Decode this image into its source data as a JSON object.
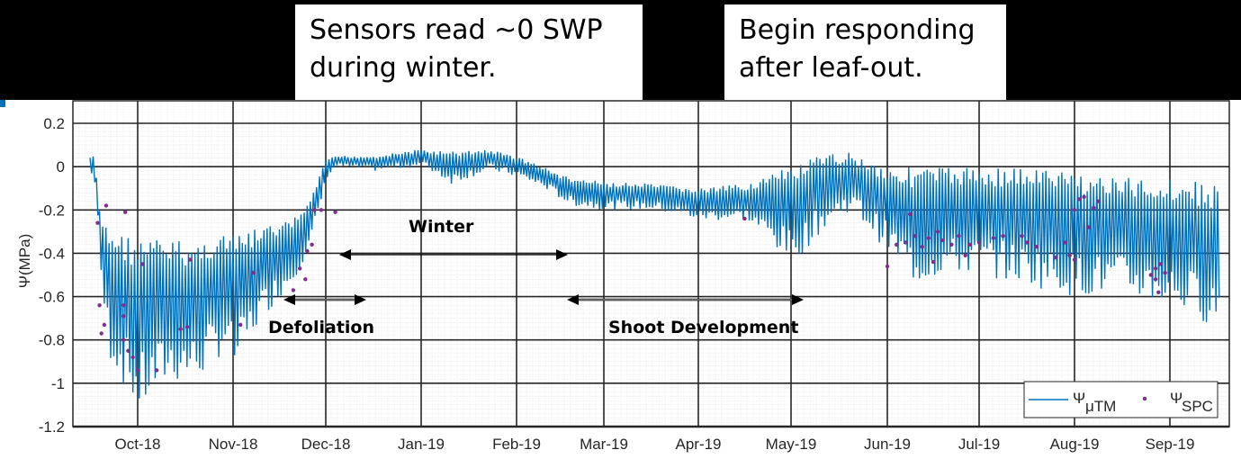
{
  "callouts": [
    {
      "line1": "Sensors read ~0 SWP",
      "line2": "during winter."
    },
    {
      "line1": "Begin responding",
      "line2": "after leaf-out."
    }
  ],
  "chart_data": {
    "type": "line",
    "title": "",
    "xlabel": "",
    "ylabel": "Ψ(MPa)",
    "ylim": [
      -1.2,
      0.2
    ],
    "yticks": [
      0.2,
      0,
      -0.2,
      -0.4,
      -0.6,
      -0.8,
      -1,
      -1.2
    ],
    "ytick_labels": [
      "0.2",
      "0",
      "-0.2",
      "-0.4",
      "-0.6",
      "-0.8",
      "-1",
      "-1.2"
    ],
    "xticks": [
      "Oct-18",
      "Nov-18",
      "Dec-18",
      "Jan-19",
      "Feb-19",
      "Mar-19",
      "Apr-19",
      "May-19",
      "Jun-19",
      "Jul-19",
      "Aug-19",
      "Sep-19"
    ],
    "xlim": [
      "mid-Sep-18",
      "end-Sep-19"
    ],
    "grid": true,
    "minor_grid": true,
    "legend_position": "lower right",
    "legend": [
      {
        "label": "Ψ",
        "sub": "μTM",
        "style": "line",
        "color": "#0072BD"
      },
      {
        "label": "Ψ",
        "sub": "SPC",
        "style": "dot",
        "color": "#7E2F8E"
      }
    ],
    "series": [
      {
        "name": "Ψ_μTM",
        "style": "line",
        "color": "#0072BD",
        "envelope_note": "daily oscillation between upper (predawn) and lower (midday) values; x = month index from Oct-18 start (0) ",
        "x": [
          -0.5,
          -0.45,
          -0.4,
          -0.3,
          0.0,
          0.3,
          0.6,
          0.9,
          1.0,
          1.3,
          1.6,
          1.8,
          2.0,
          2.1,
          2.5,
          3.0,
          3.3,
          3.7,
          4.0,
          4.3,
          4.6,
          5.0,
          5.5,
          6.0,
          6.5,
          7.0,
          7.3,
          7.6,
          8.0,
          8.3,
          8.6,
          9.0,
          9.5,
          10.0,
          10.5,
          11.0,
          11.5
        ],
        "upper": [
          0.05,
          0.05,
          -0.2,
          -0.28,
          -0.33,
          -0.33,
          -0.35,
          -0.3,
          -0.32,
          -0.28,
          -0.25,
          -0.18,
          0.03,
          0.05,
          0.05,
          0.08,
          0.07,
          0.08,
          0.05,
          0.0,
          -0.05,
          -0.07,
          -0.08,
          -0.1,
          -0.08,
          0.0,
          0.05,
          0.07,
          0.0,
          0.0,
          0.0,
          0.0,
          0.0,
          -0.02,
          -0.05,
          -0.05,
          -0.08
        ],
        "lower": [
          -0.05,
          -0.1,
          -0.6,
          -0.9,
          -1.15,
          -1.0,
          -1.0,
          -0.85,
          -0.95,
          -0.7,
          -0.55,
          -0.4,
          -0.05,
          0.0,
          -0.02,
          0.0,
          -0.08,
          -0.02,
          -0.05,
          -0.1,
          -0.18,
          -0.2,
          -0.2,
          -0.25,
          -0.25,
          -0.45,
          -0.3,
          -0.2,
          -0.4,
          -0.55,
          -0.5,
          -0.5,
          -0.55,
          -0.6,
          -0.6,
          -0.65,
          -0.75
        ]
      },
      {
        "name": "Ψ_SPC",
        "style": "markers",
        "color": "#7E2F8E",
        "points": [
          [
            -0.42,
            -0.26
          ],
          [
            -0.4,
            -0.64
          ],
          [
            -0.38,
            -0.77
          ],
          [
            -0.35,
            -0.73
          ],
          [
            -0.33,
            -0.18
          ],
          [
            -0.15,
            -0.64
          ],
          [
            -0.15,
            -0.69
          ],
          [
            -0.15,
            -0.8
          ],
          [
            -0.13,
            -0.21
          ],
          [
            -0.1,
            -0.85
          ],
          [
            -0.05,
            -0.88
          ],
          [
            0.0,
            -0.94
          ],
          [
            0.2,
            -0.94
          ],
          [
            0.05,
            -0.45
          ],
          [
            0.45,
            -0.75
          ],
          [
            0.52,
            -0.74
          ],
          [
            0.55,
            -0.43
          ],
          [
            1.08,
            -0.73
          ],
          [
            1.22,
            -0.49
          ],
          [
            1.65,
            -0.57
          ],
          [
            1.72,
            -0.47
          ],
          [
            1.78,
            -0.52
          ],
          [
            1.8,
            -0.39
          ],
          [
            1.85,
            -0.36
          ],
          [
            1.88,
            -0.2
          ],
          [
            1.95,
            -0.2
          ],
          [
            2.1,
            -0.21
          ],
          [
            6.5,
            -0.24
          ],
          [
            8.0,
            -0.46
          ],
          [
            8.1,
            -0.36
          ],
          [
            8.2,
            -0.35
          ],
          [
            8.25,
            -0.22
          ],
          [
            8.3,
            -0.32
          ],
          [
            8.38,
            -0.37
          ],
          [
            8.45,
            -0.33
          ],
          [
            8.5,
            -0.44
          ],
          [
            8.55,
            -0.3
          ],
          [
            8.6,
            -0.34
          ],
          [
            8.7,
            -0.36
          ],
          [
            8.78,
            -0.32
          ],
          [
            8.85,
            -0.41
          ],
          [
            8.9,
            -0.36
          ],
          [
            9.0,
            -0.35
          ],
          [
            9.15,
            -0.33
          ],
          [
            9.25,
            -0.32
          ],
          [
            9.45,
            -0.32
          ],
          [
            9.5,
            -0.35
          ],
          [
            9.6,
            -0.37
          ],
          [
            9.8,
            -0.42
          ],
          [
            9.9,
            -0.35
          ],
          [
            9.95,
            -0.41
          ],
          [
            10.0,
            -0.43
          ],
          [
            10.0,
            -0.2
          ],
          [
            10.05,
            -0.15
          ],
          [
            10.1,
            -0.14
          ],
          [
            10.15,
            -0.28
          ],
          [
            10.2,
            -0.19
          ],
          [
            10.25,
            -0.16
          ],
          [
            10.8,
            -0.5
          ],
          [
            10.85,
            -0.47
          ],
          [
            10.88,
            -0.58
          ],
          [
            10.9,
            -0.45
          ],
          [
            10.95,
            -0.49
          ],
          [
            10.85,
            -0.52
          ]
        ]
      }
    ],
    "annotations": [
      {
        "text": "Winter",
        "arrow_from": "early-Dec-18",
        "arrow_to": "mid-Mar-19",
        "y": -0.4
      },
      {
        "text": "Defoliation",
        "arrow_from": "mid-Nov-18",
        "arrow_to": "mid-Dec-18",
        "y": -0.6
      },
      {
        "text": "Shoot Development",
        "arrow_from": "mid-Mar-19",
        "arrow_to": "early-May-19",
        "y": -0.6
      }
    ]
  },
  "annotations_text": {
    "winter": "Winter",
    "defoliation": "Defoliation",
    "shoot": "Shoot Development"
  },
  "legend": {
    "psi": "Ψ",
    "sub1": "μTM",
    "sub2": "SPC"
  },
  "ylabel": "Ψ(MPa)"
}
